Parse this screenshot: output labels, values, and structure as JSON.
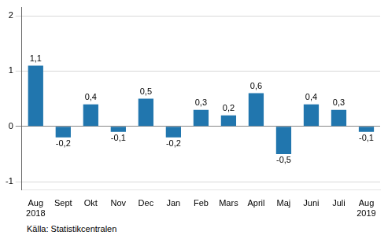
{
  "chart_data": {
    "type": "bar",
    "categories": [
      "Aug\n2018",
      "Sept",
      "Okt",
      "Nov",
      "Dec",
      "Jan",
      "Feb",
      "Mars",
      "April",
      "Maj",
      "Juni",
      "Juli",
      "Aug\n2019"
    ],
    "values": [
      1.1,
      -0.2,
      0.4,
      -0.1,
      0.5,
      -0.2,
      0.3,
      0.2,
      0.6,
      -0.5,
      0.4,
      0.3,
      -0.1
    ],
    "value_labels": [
      "1,1",
      "-0,2",
      "0,4",
      "-0,1",
      "0,5",
      "-0,2",
      "0,3",
      "0,2",
      "0,6",
      "-0,5",
      "0,4",
      "0,3",
      "-0,1"
    ],
    "data_labels": true,
    "color": "#2176ae",
    "ylim": [
      -1.15,
      2.15
    ],
    "yticks": [
      -1,
      0,
      1,
      2
    ],
    "grid": true,
    "annotations": [
      "Källa: Statistikcentralen"
    ]
  }
}
